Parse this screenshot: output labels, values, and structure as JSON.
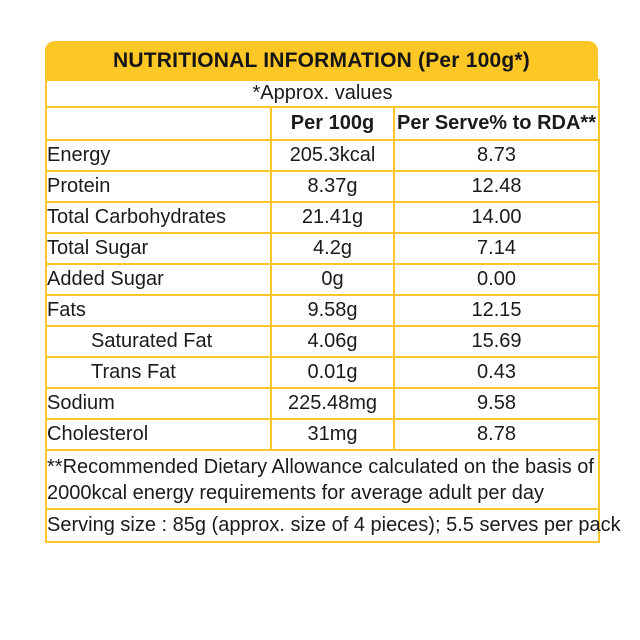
{
  "table": {
    "title": "NUTRITIONAL INFORMATION (Per 100g*)",
    "approx_note": "*Approx. values",
    "columns": {
      "col1": "",
      "col2": "Per 100g",
      "col3": "Per Serve% to RDA**"
    },
    "rows": [
      {
        "label": "Energy",
        "per100g": "205.3kcal",
        "rda": "8.73",
        "indent": false
      },
      {
        "label": "Protein",
        "per100g": "8.37g",
        "rda": "12.48",
        "indent": false
      },
      {
        "label": "Total Carbohydrates",
        "per100g": "21.41g",
        "rda": "14.00",
        "indent": false
      },
      {
        "label": "Total Sugar",
        "per100g": "4.2g",
        "rda": "7.14",
        "indent": false
      },
      {
        "label": "Added Sugar",
        "per100g": "0g",
        "rda": "0.00",
        "indent": false
      },
      {
        "label": "Fats",
        "per100g": "9.58g",
        "rda": "12.15",
        "indent": false
      },
      {
        "label": "Saturated Fat",
        "per100g": "4.06g",
        "rda": "15.69",
        "indent": true
      },
      {
        "label": "Trans Fat",
        "per100g": "0.01g",
        "rda": "0.43",
        "indent": true
      },
      {
        "label": "Sodium",
        "per100g": "225.48mg",
        "rda": "9.58",
        "indent": false
      },
      {
        "label": "Cholesterol",
        "per100g": "31mg",
        "rda": "8.78",
        "indent": false
      }
    ],
    "rda_note": "**Recommended Dietary Allowance calculated on the basis of 2000kcal energy requirements for average adult per day",
    "serving_note": "Serving size : 85g (approx. size of 4 pieces); 5.5 serves per pack"
  },
  "colors": {
    "accent_yellow": "#FDC726",
    "border_yellow": "#FCC62B",
    "text_ink": "#1B1B1B",
    "background": "#FFFFFF"
  }
}
